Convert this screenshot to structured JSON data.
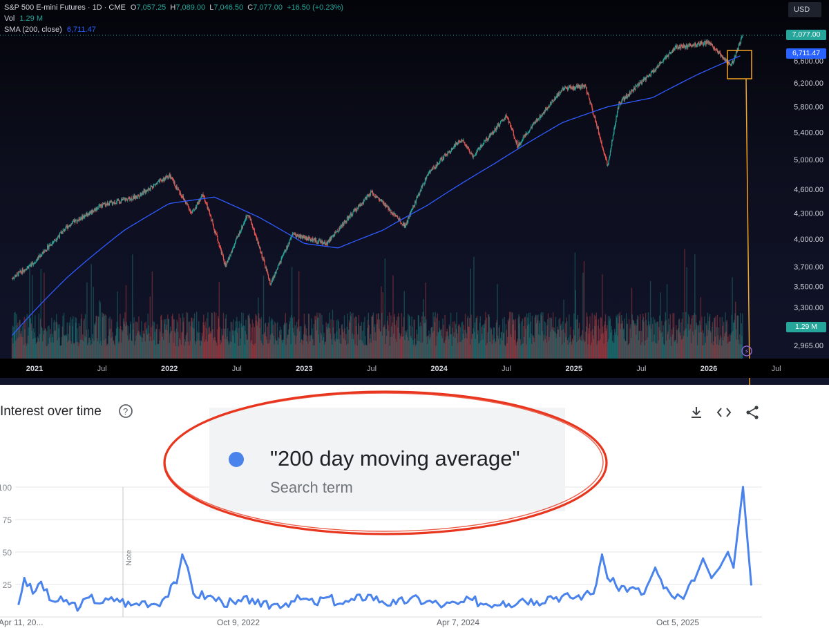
{
  "header": {
    "symbol": "S&P 500 E-mini Futures · 1D · CME",
    "o_label": "O",
    "o": "7,057.25",
    "h_label": "H",
    "h": "7,089.00",
    "l_label": "L",
    "l": "7,046.50",
    "c_label": "C",
    "c": "7,077.00",
    "change": "+16.50 (+0.23%)",
    "vol_label": "Vol",
    "vol": "1.29 M",
    "sma_label": "SMA (200, close)",
    "sma": "6,711.47"
  },
  "currency": "USD",
  "price_tags": {
    "last": "7,077.00",
    "sma": "6,711.47",
    "volume": "1.29 M"
  },
  "colors": {
    "up": "#26a69a",
    "down": "#ef5350",
    "sma": "#2962ff",
    "trends_line": "#4a83ec",
    "annotation_ellipse": "#e8361e",
    "annotation_box": "#f5a623"
  },
  "trends": {
    "title": "Interest over time",
    "help_icon": "help-circle-icon",
    "actions": [
      "download-icon",
      "embed-icon",
      "share-icon"
    ],
    "legend_term": "\"200 day moving average\"",
    "legend_sub": "Search term",
    "note_label": "Note"
  },
  "chart_data": [
    {
      "type": "candlestick",
      "title": "S&P 500 E-mini Futures · 1D · CME",
      "x_ticks": [
        "2021",
        "Jul",
        "2022",
        "Jul",
        "2023",
        "Jul",
        "2024",
        "Jul",
        "2025",
        "Jul",
        "2026",
        "Jul"
      ],
      "y_ticks": [
        2965,
        3300,
        3500,
        3700,
        4000,
        4300,
        4600,
        5000,
        5400,
        5800,
        6200,
        6600
      ],
      "y_scale": "log",
      "close_path": [
        {
          "x": "2020-11",
          "y": 3580
        },
        {
          "x": "2021-01",
          "y": 3750
        },
        {
          "x": "2021-04",
          "y": 4150
        },
        {
          "x": "2021-07",
          "y": 4400
        },
        {
          "x": "2021-10",
          "y": 4500
        },
        {
          "x": "2022-01",
          "y": 4780
        },
        {
          "x": "2022-03",
          "y": 4300
        },
        {
          "x": "2022-04",
          "y": 4530
        },
        {
          "x": "2022-06",
          "y": 3700
        },
        {
          "x": "2022-08",
          "y": 4300
        },
        {
          "x": "2022-10",
          "y": 3520
        },
        {
          "x": "2022-12",
          "y": 4050
        },
        {
          "x": "2023-03",
          "y": 3950
        },
        {
          "x": "2023-07",
          "y": 4560
        },
        {
          "x": "2023-10",
          "y": 4150
        },
        {
          "x": "2023-12",
          "y": 4800
        },
        {
          "x": "2024-03",
          "y": 5300
        },
        {
          "x": "2024-04",
          "y": 5050
        },
        {
          "x": "2024-07",
          "y": 5650
        },
        {
          "x": "2024-08",
          "y": 5200
        },
        {
          "x": "2024-12",
          "y": 6100
        },
        {
          "x": "2025-02",
          "y": 6150
        },
        {
          "x": "2025-04",
          "y": 4900
        },
        {
          "x": "2025-05",
          "y": 5850
        },
        {
          "x": "2025-08",
          "y": 6400
        },
        {
          "x": "2025-10",
          "y": 6850
        },
        {
          "x": "2026-01",
          "y": 6950
        },
        {
          "x": "2026-03",
          "y": 6500
        },
        {
          "x": "2026-04",
          "y": 7077
        }
      ],
      "sma_path": [
        {
          "x": "2020-11",
          "y": 3050
        },
        {
          "x": "2021-04",
          "y": 3600
        },
        {
          "x": "2021-09",
          "y": 4100
        },
        {
          "x": "2022-01",
          "y": 4420
        },
        {
          "x": "2022-05",
          "y": 4500
        },
        {
          "x": "2022-09",
          "y": 4250
        },
        {
          "x": "2023-01",
          "y": 3950
        },
        {
          "x": "2023-04",
          "y": 3900
        },
        {
          "x": "2023-08",
          "y": 4100
        },
        {
          "x": "2023-12",
          "y": 4400
        },
        {
          "x": "2024-06",
          "y": 4950
        },
        {
          "x": "2024-12",
          "y": 5550
        },
        {
          "x": "2025-04",
          "y": 5800
        },
        {
          "x": "2025-08",
          "y": 5950
        },
        {
          "x": "2025-12",
          "y": 6350
        },
        {
          "x": "2026-04",
          "y": 6711
        }
      ]
    },
    {
      "type": "line",
      "title": "Interest over time",
      "series": [
        {
          "name": "\"200 day moving average\""
        }
      ],
      "x_ticks": [
        "Apr 11, 20...",
        "Oct 9, 2022",
        "Apr 7, 2024",
        "Oct 5, 2025"
      ],
      "y_ticks": [
        25,
        50,
        75,
        100
      ],
      "ylim": [
        0,
        100
      ],
      "points": [
        {
          "x": "2021-04-11",
          "y": 10
        },
        {
          "x": "2021-04-25",
          "y": 30
        },
        {
          "x": "2021-05-16",
          "y": 18
        },
        {
          "x": "2021-06-06",
          "y": 27
        },
        {
          "x": "2021-06-27",
          "y": 13
        },
        {
          "x": "2021-08-01",
          "y": 12
        },
        {
          "x": "2021-09-12",
          "y": 8
        },
        {
          "x": "2021-10-03",
          "y": 15
        },
        {
          "x": "2021-11-07",
          "y": 11
        },
        {
          "x": "2021-12-12",
          "y": 14
        },
        {
          "x": "2022-01-16",
          "y": 9
        },
        {
          "x": "2022-02-20",
          "y": 12
        },
        {
          "x": "2022-03-13",
          "y": 10
        },
        {
          "x": "2022-04-03",
          "y": 13
        },
        {
          "x": "2022-05-08",
          "y": 26
        },
        {
          "x": "2022-05-22",
          "y": 48
        },
        {
          "x": "2022-06-05",
          "y": 38
        },
        {
          "x": "2022-06-19",
          "y": 18
        },
        {
          "x": "2022-07-24",
          "y": 16
        },
        {
          "x": "2022-08-28",
          "y": 12
        },
        {
          "x": "2022-10-02",
          "y": 10
        },
        {
          "x": "2022-11-13",
          "y": 14
        },
        {
          "x": "2022-12-04",
          "y": 8
        },
        {
          "x": "2023-01-15",
          "y": 10
        },
        {
          "x": "2023-02-19",
          "y": 12
        },
        {
          "x": "2023-03-19",
          "y": 14
        },
        {
          "x": "2023-04-16",
          "y": 10
        },
        {
          "x": "2023-05-14",
          "y": 15
        },
        {
          "x": "2023-06-25",
          "y": 10
        },
        {
          "x": "2023-07-23",
          "y": 13
        },
        {
          "x": "2023-08-27",
          "y": 17
        },
        {
          "x": "2023-10-01",
          "y": 12
        },
        {
          "x": "2023-11-05",
          "y": 10
        },
        {
          "x": "2023-12-10",
          "y": 14
        },
        {
          "x": "2024-01-21",
          "y": 12
        },
        {
          "x": "2024-03-03",
          "y": 9
        },
        {
          "x": "2024-04-07",
          "y": 10
        },
        {
          "x": "2024-05-12",
          "y": 13
        },
        {
          "x": "2024-06-16",
          "y": 10
        },
        {
          "x": "2024-07-28",
          "y": 12
        },
        {
          "x": "2024-08-11",
          "y": 10
        },
        {
          "x": "2024-09-15",
          "y": 14
        },
        {
          "x": "2024-10-20",
          "y": 12
        },
        {
          "x": "2024-11-24",
          "y": 16
        },
        {
          "x": "2025-01-12",
          "y": 15
        },
        {
          "x": "2025-02-16",
          "y": 17
        },
        {
          "x": "2025-03-09",
          "y": 18
        },
        {
          "x": "2025-03-30",
          "y": 48
        },
        {
          "x": "2025-04-13",
          "y": 30
        },
        {
          "x": "2025-05-04",
          "y": 24
        },
        {
          "x": "2025-06-08",
          "y": 22
        },
        {
          "x": "2025-07-13",
          "y": 18
        },
        {
          "x": "2025-08-10",
          "y": 38
        },
        {
          "x": "2025-08-31",
          "y": 22
        },
        {
          "x": "2025-09-21",
          "y": 16
        },
        {
          "x": "2025-10-19",
          "y": 14
        },
        {
          "x": "2025-11-16",
          "y": 28
        },
        {
          "x": "2025-12-07",
          "y": 45
        },
        {
          "x": "2025-12-28",
          "y": 30
        },
        {
          "x": "2026-01-18",
          "y": 38
        },
        {
          "x": "2026-02-08",
          "y": 50
        },
        {
          "x": "2026-02-22",
          "y": 38
        },
        {
          "x": "2026-03-15",
          "y": 100
        },
        {
          "x": "2026-04-05",
          "y": 25
        }
      ]
    }
  ]
}
